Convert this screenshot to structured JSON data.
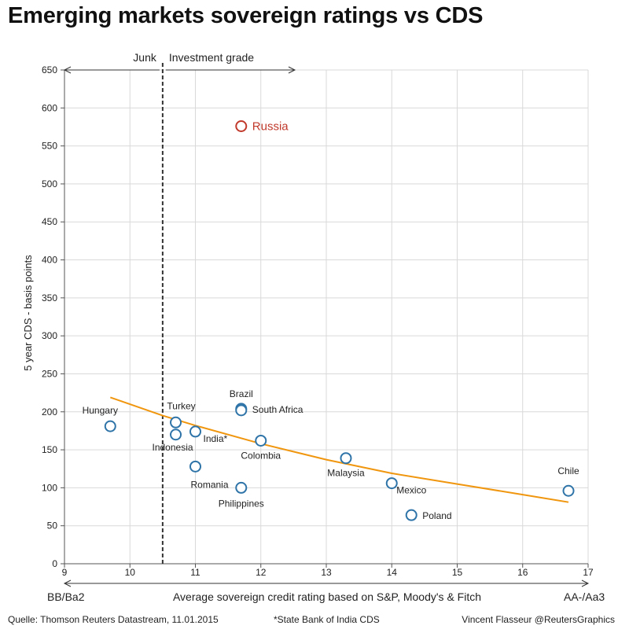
{
  "chart_data": {
    "type": "scatter",
    "title": "Emerging markets sovereign ratings vs CDS",
    "ylabel": "5 year CDS - basis points",
    "xlabel": "Average sovereign credit rating based on S&P, Moody's & Fitch",
    "xlabel_left": "BB/Ba2",
    "xlabel_right": "AA-/Aa3",
    "xlim": [
      9,
      17
    ],
    "ylim": [
      0,
      650
    ],
    "xticks": [
      "9",
      "10",
      "11",
      "12",
      "13",
      "14",
      "15",
      "16",
      "17"
    ],
    "yticks": [
      "0",
      "50",
      "100",
      "150",
      "200",
      "250",
      "300",
      "350",
      "400",
      "450",
      "500",
      "550",
      "600",
      "650"
    ],
    "grid": true,
    "threshold": {
      "x": 10.5,
      "left_label": "Junk",
      "right_label": "Investment grade"
    },
    "colors": {
      "point": "#2f74a8",
      "highlight": "#c0392b",
      "trend": "#f0960e",
      "grid": "#d9d9d9"
    },
    "points": [
      {
        "name": "Russia",
        "x": 11.7,
        "y": 576,
        "highlight": true
      },
      {
        "name": "Hungary",
        "x": 9.7,
        "y": 181
      },
      {
        "name": "Turkey",
        "x": 10.7,
        "y": 186
      },
      {
        "name": "Indonesia",
        "x": 10.7,
        "y": 170
      },
      {
        "name": "India*",
        "x": 11.0,
        "y": 174
      },
      {
        "name": "Romania",
        "x": 11.0,
        "y": 128
      },
      {
        "name": "Brazil",
        "x": 11.7,
        "y": 204
      },
      {
        "name": "South Africa",
        "x": 11.7,
        "y": 202
      },
      {
        "name": "Philippines",
        "x": 11.7,
        "y": 100
      },
      {
        "name": "Colombia",
        "x": 12.0,
        "y": 162
      },
      {
        "name": "Malaysia",
        "x": 13.3,
        "y": 139
      },
      {
        "name": "Mexico",
        "x": 14.0,
        "y": 106
      },
      {
        "name": "Poland",
        "x": 14.3,
        "y": 64
      },
      {
        "name": "Chile",
        "x": 16.7,
        "y": 96
      }
    ],
    "trendline": {
      "x": [
        9.7,
        10.5,
        11.0,
        12.0,
        13.0,
        14.0,
        15.0,
        16.0,
        16.7
      ],
      "y": [
        219,
        195,
        182,
        158,
        137,
        119,
        105,
        91,
        81
      ]
    }
  },
  "footer": {
    "source": "Quelle: Thomson Reuters Datastream, 11.01.2015",
    "note": "*State Bank of India CDS",
    "credit": "Vincent Flasseur @ReutersGraphics"
  }
}
